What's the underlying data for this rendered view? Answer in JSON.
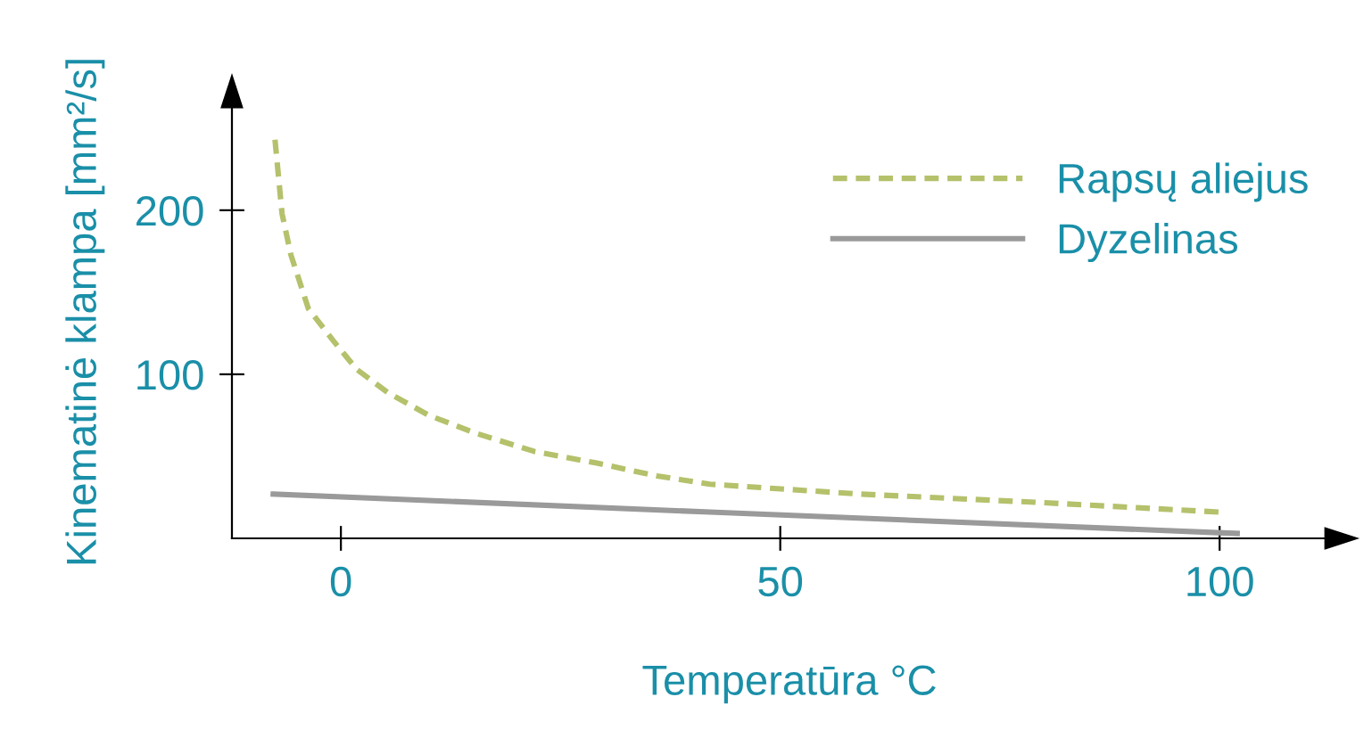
{
  "chart_data": {
    "type": "line",
    "xlabel": "Temperatūra °C",
    "ylabel": "Kinematinė klampa [mm²/s]",
    "xlim": [
      -12.4,
      114.5
    ],
    "ylim": [
      0,
      276
    ],
    "xticks": [
      0,
      50,
      100
    ],
    "yticks": [
      100,
      200
    ],
    "legend": "right",
    "grid": false,
    "series": [
      {
        "name": "Rapsų aliejus",
        "color": "#b5c16b",
        "line_style": "dashed",
        "x": [
          -7.5,
          -6.7,
          -5.7,
          -3.7,
          -0.8,
          1.8,
          5.3,
          10,
          15.4,
          22,
          29,
          36,
          42,
          59,
          79,
          100
        ],
        "values": [
          243,
          198,
          173,
          140,
          120,
          103,
          89,
          75,
          64,
          53,
          46,
          38,
          33,
          27,
          22,
          16
        ]
      },
      {
        "name": "Dyzelinas",
        "color": "#9a9a9a",
        "line_style": "solid",
        "x": [
          -7.7,
          42,
          102
        ],
        "values": [
          27,
          16,
          3
        ]
      }
    ]
  }
}
